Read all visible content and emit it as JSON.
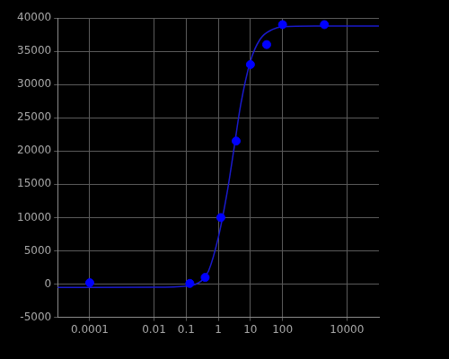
{
  "chart_data": {
    "type": "scatter",
    "log": "x",
    "grid": true,
    "xlim": [
      1e-05,
      100000
    ],
    "xticks": [
      0.0001,
      0.01,
      0.1,
      1,
      10,
      100,
      10000
    ],
    "ylim": [
      -5000,
      40000
    ],
    "yticks": [
      -5000,
      0,
      5000,
      10000,
      15000,
      20000,
      25000,
      30000,
      35000,
      40000
    ],
    "series": [
      {
        "type": "scatter",
        "marker": "circle",
        "color": "#0000ff",
        "x": [
          0.0001,
          0.13,
          0.39,
          1.2,
          3.6,
          10,
          32,
          100,
          2000
        ],
        "values": [
          200,
          100,
          1000,
          10000,
          21500,
          33000,
          36000,
          39000,
          39000
        ]
      },
      {
        "type": "line",
        "line_style": "solid",
        "color": "#1a1acc",
        "x": [
          1e-05,
          0.0001,
          0.01,
          0.1,
          0.3,
          0.5,
          1,
          2,
          3,
          5,
          10,
          20,
          50,
          100,
          1000,
          100000
        ],
        "values": [
          -500,
          -500,
          -480,
          -300,
          500,
          2000,
          7000,
          14500,
          20000,
          27000,
          33500,
          36800,
          38300,
          38700,
          38800,
          38800
        ]
      }
    ]
  }
}
